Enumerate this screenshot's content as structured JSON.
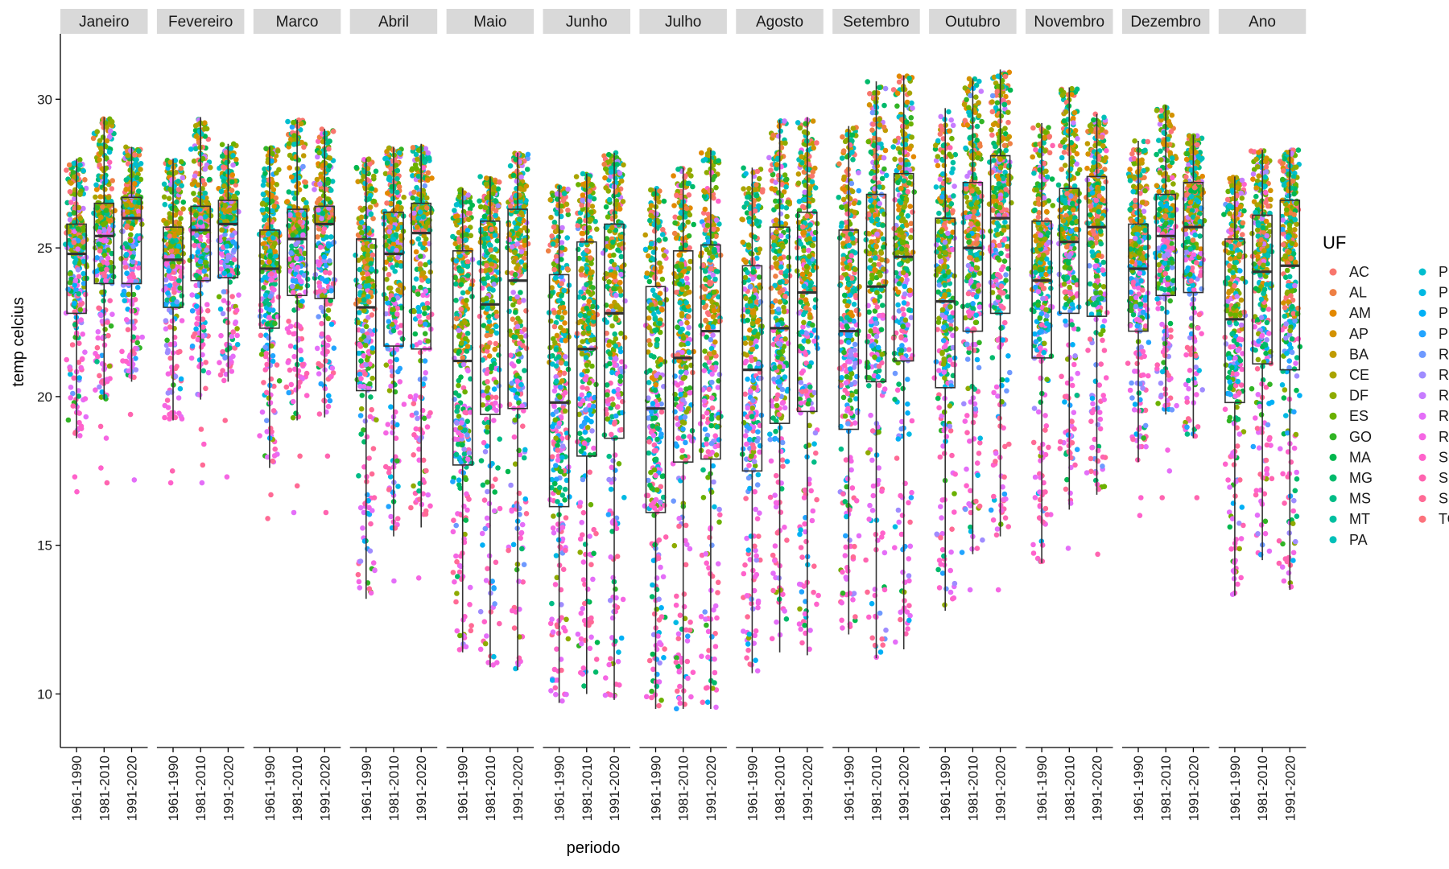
{
  "chart_data": {
    "type": "scatter",
    "xlabel": "periodo",
    "ylabel": "temp celcius",
    "ylim": [
      8.2,
      32.2
    ],
    "y_ticks": [
      10,
      15,
      20,
      25,
      30
    ],
    "grid": false,
    "facets": [
      "Janeiro",
      "Fevereiro",
      "Marco",
      "Abril",
      "Maio",
      "Junho",
      "Julho",
      "Agosto",
      "Setembro",
      "Outubro",
      "Novembro",
      "Dezembro",
      "Ano"
    ],
    "periods": [
      "1961-1990",
      "1981-2010",
      "1991-2020"
    ],
    "legend": {
      "title": "UF",
      "placement": "right",
      "entries": [
        {
          "uf": "AC",
          "color": "#F8766D"
        },
        {
          "uf": "AL",
          "color": "#EE8044"
        },
        {
          "uf": "AM",
          "color": "#E38900"
        },
        {
          "uf": "AP",
          "color": "#D39200"
        },
        {
          "uf": "BA",
          "color": "#C09B00"
        },
        {
          "uf": "CE",
          "color": "#A9A400"
        },
        {
          "uf": "DF",
          "color": "#8EAB00"
        },
        {
          "uf": "ES",
          "color": "#6BB100"
        },
        {
          "uf": "GO",
          "color": "#31B425"
        },
        {
          "uf": "MA",
          "color": "#00B74E"
        },
        {
          "uf": "MG",
          "color": "#00BA6B"
        },
        {
          "uf": "MS",
          "color": "#00BC86"
        },
        {
          "uf": "MT",
          "color": "#00BFA0"
        },
        {
          "uf": "PA",
          "color": "#00C0B9"
        },
        {
          "uf": "PB",
          "color": "#00BECF"
        },
        {
          "uf": "PE",
          "color": "#00B9E3"
        },
        {
          "uf": "PI",
          "color": "#00B0F6"
        },
        {
          "uf": "PR",
          "color": "#22A4FF"
        },
        {
          "uf": "RJ",
          "color": "#6E99FF"
        },
        {
          "uf": "RN",
          "color": "#9F8CFF"
        },
        {
          "uf": "RO",
          "color": "#C77CFF"
        },
        {
          "uf": "RR",
          "color": "#E46EF8"
        },
        {
          "uf": "RS",
          "color": "#F566E3"
        },
        {
          "uf": "SC",
          "color": "#FF62CB"
        },
        {
          "uf": "SE",
          "color": "#FF64B0"
        },
        {
          "uf": "SP",
          "color": "#FF6A95"
        },
        {
          "uf": "TO",
          "color": "#FC727C"
        }
      ]
    },
    "boxplots": [
      {
        "month": "Janeiro",
        "period": "1961-1990",
        "min": 18.6,
        "q1": 22.8,
        "median": 24.8,
        "q3": 25.8,
        "max": 28.0,
        "outliers": [
          17.3,
          16.8
        ]
      },
      {
        "month": "Janeiro",
        "period": "1981-2010",
        "min": 19.9,
        "q1": 23.8,
        "median": 25.4,
        "q3": 26.5,
        "max": 29.4,
        "outliers": [
          19.0,
          18.6,
          17.6,
          17.1
        ]
      },
      {
        "month": "Janeiro",
        "period": "1991-2020",
        "min": 20.5,
        "q1": 23.8,
        "median": 26.0,
        "q3": 26.7,
        "max": 28.4,
        "outliers": [
          19.4,
          17.2
        ]
      },
      {
        "month": "Fevereiro",
        "period": "1961-1990",
        "min": 19.2,
        "q1": 23.0,
        "median": 24.6,
        "q3": 25.7,
        "max": 28.0,
        "outliers": [
          17.5,
          17.1
        ]
      },
      {
        "month": "Fevereiro",
        "period": "1981-2010",
        "min": 19.9,
        "q1": 23.9,
        "median": 25.6,
        "q3": 26.4,
        "max": 29.4,
        "outliers": [
          18.9,
          18.4,
          17.7,
          17.1
        ]
      },
      {
        "month": "Fevereiro",
        "period": "1991-2020",
        "min": 20.5,
        "q1": 24.0,
        "median": 25.8,
        "q3": 26.6,
        "max": 28.5,
        "outliers": [
          19.2,
          17.3
        ]
      },
      {
        "month": "Marco",
        "period": "1961-1990",
        "min": 17.6,
        "q1": 22.3,
        "median": 24.3,
        "q3": 25.6,
        "max": 28.4,
        "outliers": [
          16.7,
          15.9
        ]
      },
      {
        "month": "Marco",
        "period": "1981-2010",
        "min": 19.2,
        "q1": 23.4,
        "median": 25.3,
        "q3": 26.3,
        "max": 29.3,
        "outliers": [
          18.0,
          17.0,
          16.1
        ]
      },
      {
        "month": "Marco",
        "period": "1991-2020",
        "min": 19.3,
        "q1": 23.3,
        "median": 25.8,
        "q3": 26.4,
        "max": 29.0,
        "outliers": [
          18.0,
          16.1
        ]
      },
      {
        "month": "Abril",
        "period": "1961-1990",
        "min": 13.2,
        "q1": 20.2,
        "median": 23.0,
        "q3": 25.3,
        "max": 28.0,
        "outliers": []
      },
      {
        "month": "Abril",
        "period": "1981-2010",
        "min": 15.3,
        "q1": 21.7,
        "median": 24.8,
        "q3": 26.2,
        "max": 28.4,
        "outliers": [
          13.8
        ]
      },
      {
        "month": "Abril",
        "period": "1991-2020",
        "min": 15.6,
        "q1": 21.6,
        "median": 25.5,
        "q3": 26.5,
        "max": 28.5,
        "outliers": [
          13.9
        ]
      },
      {
        "month": "Maio",
        "period": "1961-1990",
        "min": 11.4,
        "q1": 17.7,
        "median": 21.2,
        "q3": 24.9,
        "max": 27.0,
        "outliers": []
      },
      {
        "month": "Maio",
        "period": "1981-2010",
        "min": 10.9,
        "q1": 19.4,
        "median": 23.1,
        "q3": 25.9,
        "max": 27.4,
        "outliers": []
      },
      {
        "month": "Maio",
        "period": "1991-2020",
        "min": 10.8,
        "q1": 19.6,
        "median": 23.9,
        "q3": 26.3,
        "max": 28.2,
        "outliers": []
      },
      {
        "month": "Junho",
        "period": "1961-1990",
        "min": 9.7,
        "q1": 16.3,
        "median": 19.8,
        "q3": 24.1,
        "max": 27.1,
        "outliers": []
      },
      {
        "month": "Junho",
        "period": "1981-2010",
        "min": 10.0,
        "q1": 18.0,
        "median": 21.6,
        "q3": 25.2,
        "max": 27.5,
        "outliers": []
      },
      {
        "month": "Junho",
        "period": "1991-2020",
        "min": 9.8,
        "q1": 18.6,
        "median": 22.8,
        "q3": 25.8,
        "max": 28.2,
        "outliers": []
      },
      {
        "month": "Julho",
        "period": "1961-1990",
        "min": 9.5,
        "q1": 16.1,
        "median": 19.6,
        "q3": 23.7,
        "max": 27.0,
        "outliers": []
      },
      {
        "month": "Julho",
        "period": "1981-2010",
        "min": 9.5,
        "q1": 17.8,
        "median": 21.3,
        "q3": 24.9,
        "max": 27.7,
        "outliers": []
      },
      {
        "month": "Julho",
        "period": "1991-2020",
        "min": 9.5,
        "q1": 17.9,
        "median": 22.2,
        "q3": 25.1,
        "max": 28.3,
        "outliers": []
      },
      {
        "month": "Agosto",
        "period": "1961-1990",
        "min": 10.7,
        "q1": 17.5,
        "median": 20.9,
        "q3": 24.4,
        "max": 27.7,
        "outliers": []
      },
      {
        "month": "Agosto",
        "period": "1981-2010",
        "min": 11.4,
        "q1": 19.1,
        "median": 22.3,
        "q3": 25.7,
        "max": 29.3,
        "outliers": []
      },
      {
        "month": "Agosto",
        "period": "1991-2020",
        "min": 11.3,
        "q1": 19.5,
        "median": 23.5,
        "q3": 26.2,
        "max": 29.4,
        "outliers": []
      },
      {
        "month": "Setembro",
        "period": "1961-1990",
        "min": 12.0,
        "q1": 18.9,
        "median": 22.2,
        "q3": 25.6,
        "max": 29.1,
        "outliers": []
      },
      {
        "month": "Setembro",
        "period": "1981-2010",
        "min": 11.2,
        "q1": 20.5,
        "median": 23.7,
        "q3": 26.8,
        "max": 30.6,
        "outliers": []
      },
      {
        "month": "Setembro",
        "period": "1991-2020",
        "min": 11.5,
        "q1": 21.2,
        "median": 24.7,
        "q3": 27.5,
        "max": 30.8,
        "outliers": []
      },
      {
        "month": "Outubro",
        "period": "1961-1990",
        "min": 12.8,
        "q1": 20.3,
        "median": 23.2,
        "q3": 26.0,
        "max": 29.7,
        "outliers": []
      },
      {
        "month": "Outubro",
        "period": "1981-2010",
        "min": 14.7,
        "q1": 22.2,
        "median": 25.0,
        "q3": 27.2,
        "max": 30.7,
        "outliers": [
          13.5
        ]
      },
      {
        "month": "Outubro",
        "period": "1991-2020",
        "min": 15.3,
        "q1": 22.8,
        "median": 26.0,
        "q3": 28.1,
        "max": 31.0,
        "outliers": [
          13.5
        ]
      },
      {
        "month": "Novembro",
        "period": "1961-1990",
        "min": 14.4,
        "q1": 21.3,
        "median": 23.9,
        "q3": 25.9,
        "max": 29.2,
        "outliers": []
      },
      {
        "month": "Novembro",
        "period": "1981-2010",
        "min": 16.2,
        "q1": 22.8,
        "median": 25.2,
        "q3": 27.0,
        "max": 30.4,
        "outliers": [
          14.9
        ]
      },
      {
        "month": "Novembro",
        "period": "1991-2020",
        "min": 16.7,
        "q1": 22.7,
        "median": 25.7,
        "q3": 27.4,
        "max": 29.5,
        "outliers": [
          14.7
        ]
      },
      {
        "month": "Dezembro",
        "period": "1961-1990",
        "min": 17.8,
        "q1": 22.2,
        "median": 24.3,
        "q3": 25.8,
        "max": 28.6,
        "outliers": [
          16.6,
          16.0
        ]
      },
      {
        "month": "Dezembro",
        "period": "1981-2010",
        "min": 19.4,
        "q1": 23.4,
        "median": 25.4,
        "q3": 26.8,
        "max": 29.8,
        "outliers": [
          18.2,
          17.5,
          16.6
        ]
      },
      {
        "month": "Dezembro",
        "period": "1991-2020",
        "min": 18.6,
        "q1": 23.5,
        "median": 25.7,
        "q3": 27.2,
        "max": 28.8,
        "outliers": [
          16.6
        ]
      },
      {
        "month": "Ano",
        "period": "1961-1990",
        "min": 13.3,
        "q1": 19.8,
        "median": 22.6,
        "q3": 25.3,
        "max": 27.4,
        "outliers": []
      },
      {
        "month": "Ano",
        "period": "1981-2010",
        "min": 14.5,
        "q1": 21.1,
        "median": 24.2,
        "q3": 26.1,
        "max": 28.3,
        "outliers": []
      },
      {
        "month": "Ano",
        "period": "1991-2020",
        "min": 13.5,
        "q1": 20.9,
        "median": 24.4,
        "q3": 26.6,
        "max": 28.3,
        "outliers": []
      }
    ]
  }
}
